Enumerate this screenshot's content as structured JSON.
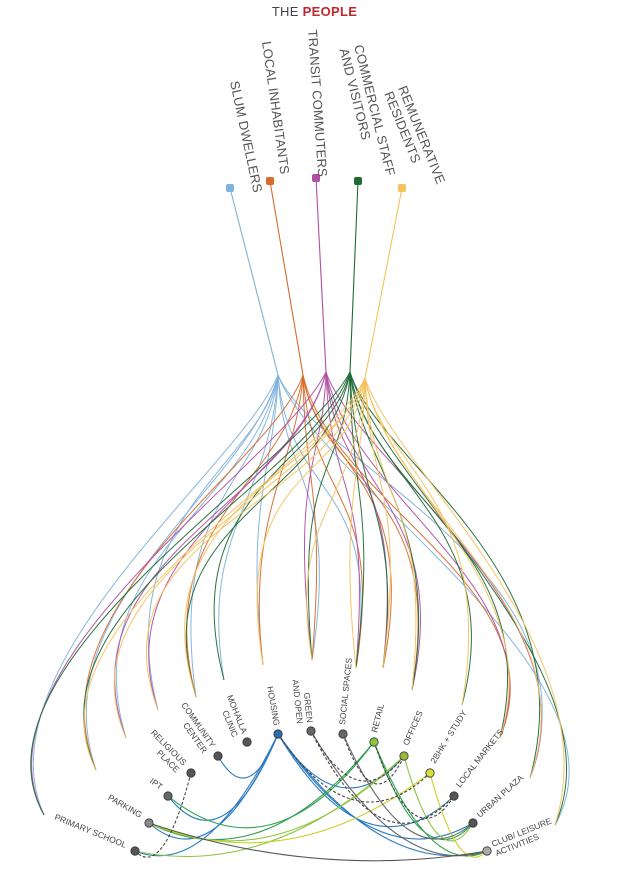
{
  "title": {
    "plain": "THE ",
    "accent": "PEOPLE",
    "accent_color": "#c0272d"
  },
  "groups": [
    {
      "id": "slum",
      "lines": [
        "SLUM DWELLERS"
      ],
      "color": "#7fb2dc",
      "links": [
        "primary_school",
        "parking",
        "ipt",
        "religious",
        "community",
        "mohalla",
        "housing",
        "green",
        "social",
        "urban_plaza",
        "club"
      ]
    },
    {
      "id": "local",
      "lines": [
        "LOCAL INHABITANTS"
      ],
      "color": "#d96a2b",
      "links": [
        "housing",
        "green",
        "social",
        "retail",
        "offices",
        "local_markets",
        "parking",
        "community"
      ]
    },
    {
      "id": "transit",
      "lines": [
        "TRANSIT COMMUTERS"
      ],
      "color": "#b04fa3",
      "links": [
        "primary_school",
        "religious",
        "ipt",
        "green",
        "retail",
        "local_markets",
        "urban_plaza",
        "offices",
        "social"
      ]
    },
    {
      "id": "commercial",
      "lines": [
        "COMMERCIAL STAFF",
        "AND VISITORS"
      ],
      "color": "#1f6b35",
      "links": [
        "primary_school",
        "parking",
        "community",
        "mohalla",
        "green",
        "retail",
        "offices",
        "twobhk",
        "local_markets",
        "urban_plaza",
        "club",
        "social"
      ]
    },
    {
      "id": "remunerative",
      "lines": [
        "REMUNERATIVE",
        "RESIDENTS"
      ],
      "color": "#f5c25e",
      "links": [
        "parking",
        "ipt",
        "religious",
        "community",
        "housing",
        "green",
        "social",
        "retail",
        "offices",
        "twobhk",
        "local_markets",
        "urban_plaza",
        "club"
      ]
    }
  ],
  "facilities": [
    {
      "id": "primary_school",
      "lines": [
        "PRIMARY SCHOOL"
      ],
      "fill": "#555555"
    },
    {
      "id": "parking",
      "lines": [
        "PARKING"
      ],
      "fill": "#888888"
    },
    {
      "id": "ipt",
      "lines": [
        "IPT"
      ],
      "fill": "#666666"
    },
    {
      "id": "religious",
      "lines": [
        "RELIGIOUS",
        "PLACE"
      ],
      "fill": "#555555"
    },
    {
      "id": "community",
      "lines": [
        "COMMUNITY",
        "CENTER"
      ],
      "fill": "#555555"
    },
    {
      "id": "mohalla",
      "lines": [
        "MOHALLA",
        "CLINIC"
      ],
      "fill": "#555555"
    },
    {
      "id": "housing",
      "lines": [
        "HOUSING"
      ],
      "fill": "#2b6cb0"
    },
    {
      "id": "green",
      "lines": [
        "GREEN",
        "AND OPEN"
      ],
      "fill": "#666666"
    },
    {
      "id": "social",
      "lines": [
        "SOCIAL SPACES"
      ],
      "fill": "#666666"
    },
    {
      "id": "retail",
      "lines": [
        "RETAIL"
      ],
      "fill": "#8cc63f"
    },
    {
      "id": "offices",
      "lines": [
        "OFFICES"
      ],
      "fill": "#9bb83a"
    },
    {
      "id": "twobhk",
      "lines": [
        "2BHK + STUDY"
      ],
      "fill": "#d8dc3c"
    },
    {
      "id": "local_markets",
      "lines": [
        "LOCAL MARKETS"
      ],
      "fill": "#555555"
    },
    {
      "id": "urban_plaza",
      "lines": [
        "URBAN PLAZA"
      ],
      "fill": "#555555"
    },
    {
      "id": "club",
      "lines": [
        "CLUB/ LEISURE",
        "ACTIVITIES"
      ],
      "fill": "#aaaaaa"
    }
  ],
  "facility_links": [
    {
      "from": "housing",
      "to": "community",
      "color": "#2b7bbf"
    },
    {
      "from": "housing",
      "to": "ipt",
      "color": "#2b7bbf"
    },
    {
      "from": "housing",
      "to": "parking",
      "color": "#2b7bbf"
    },
    {
      "from": "housing",
      "to": "primary_school",
      "color": "#2b7bbf"
    },
    {
      "from": "housing",
      "to": "urban_plaza",
      "color": "#2b7bbf"
    },
    {
      "from": "housing",
      "to": "local_markets",
      "color": "#2b7bbf"
    },
    {
      "from": "housing",
      "to": "club",
      "color": "#2b7bbf"
    },
    {
      "from": "housing",
      "to": "offices",
      "color": "#2b7bbf"
    },
    {
      "from": "retail",
      "to": "ipt",
      "color": "#2ea04f"
    },
    {
      "from": "retail",
      "to": "parking",
      "color": "#2ea04f"
    },
    {
      "from": "retail",
      "to": "urban_plaza",
      "color": "#2ea04f"
    },
    {
      "from": "retail",
      "to": "club",
      "color": "#2ea04f"
    },
    {
      "from": "offices",
      "to": "parking",
      "color": "#8cc63f"
    },
    {
      "from": "offices",
      "to": "primary_school",
      "color": "#8cc63f"
    },
    {
      "from": "offices",
      "to": "urban_plaza",
      "color": "#8cc63f"
    },
    {
      "from": "twobhk",
      "to": "parking",
      "color": "#c9d12a"
    },
    {
      "from": "twobhk",
      "to": "club",
      "color": "#c9d12a"
    },
    {
      "from": "green",
      "to": "club",
      "color": "#666666"
    },
    {
      "from": "social",
      "to": "urban_plaza",
      "color": "#666666"
    },
    {
      "from": "parking",
      "to": "club",
      "color": "#555555"
    },
    {
      "from": "religious",
      "to": "primary_school",
      "color": "#444444",
      "dashed": true
    },
    {
      "from": "housing",
      "to": "twobhk",
      "color": "#444444",
      "dashed": true
    },
    {
      "from": "green",
      "to": "local_markets",
      "color": "#444444",
      "dashed": true
    },
    {
      "from": "social",
      "to": "offices",
      "color": "#444444",
      "dashed": true
    },
    {
      "from": "green",
      "to": "offices",
      "color": "#444444",
      "dashed": true
    },
    {
      "from": "retail",
      "to": "local_markets",
      "color": "#444444",
      "dashed": true
    }
  ]
}
